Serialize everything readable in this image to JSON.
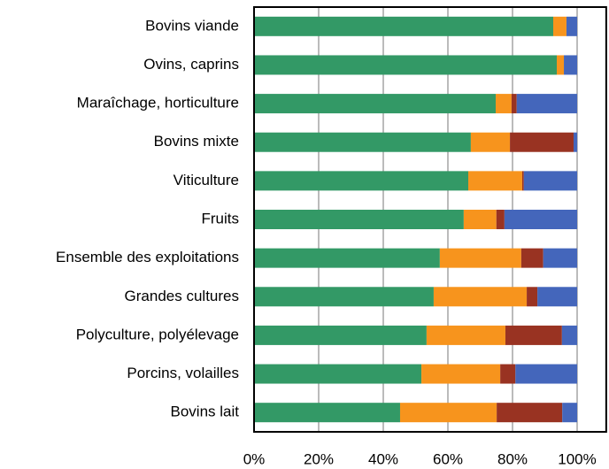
{
  "chart_data": {
    "type": "stacked-barh",
    "categories": [
      "Bovins viande",
      "Ovins, caprins",
      "Maraîchage, horticulture",
      "Bovins mixte",
      "Viticulture",
      "Fruits",
      "Ensemble des exploitations",
      "Grandes cultures",
      "Polyculture, polyélevage",
      "Porcins, volailles",
      "Bovins lait"
    ],
    "series": [
      {
        "color": "#339966",
        "values": [
          92.6,
          93.7,
          74.8,
          67.1,
          66.3,
          64.9,
          57.5,
          55.6,
          53.4,
          51.8,
          45.2
        ]
      },
      {
        "color": "#f7941d",
        "values": [
          4.1,
          2.2,
          4.9,
          12.1,
          16.7,
          10.1,
          25.2,
          28.8,
          24.4,
          24.4,
          29.9
        ]
      },
      {
        "color": "#993322",
        "values": [
          0,
          0,
          1.6,
          19.7,
          0.5,
          2.5,
          6.8,
          3.3,
          17.5,
          4.7,
          20.3
        ]
      },
      {
        "color": "#4466bb",
        "values": [
          3.3,
          4.1,
          18.7,
          1.1,
          16.5,
          22.5,
          10.5,
          12.3,
          4.7,
          19.1,
          4.6
        ]
      }
    ],
    "xlim": [
      0,
      109
    ],
    "xticks": [
      {
        "value": 0,
        "label": "0%"
      },
      {
        "value": 20,
        "label": "20%"
      },
      {
        "value": 40,
        "label": "40%"
      },
      {
        "value": 60,
        "label": "60%"
      },
      {
        "value": 80,
        "label": "80%"
      },
      {
        "value": 100,
        "label": "100%"
      }
    ],
    "grid": true
  }
}
